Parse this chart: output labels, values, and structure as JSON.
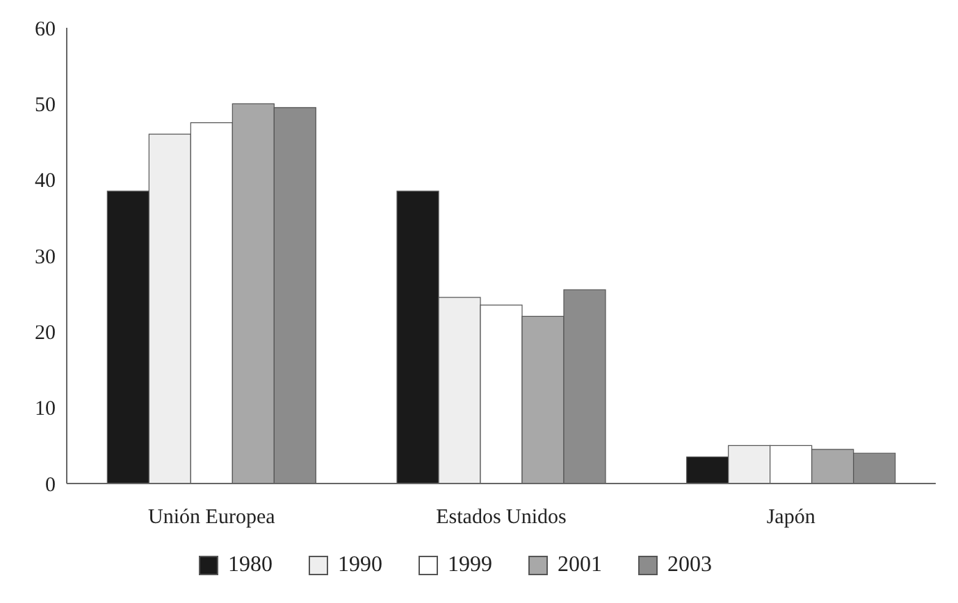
{
  "chart_data": {
    "type": "bar",
    "categories": [
      "Unión Europea",
      "Estados Unidos",
      "Japón"
    ],
    "series": [
      {
        "name": "1980",
        "color": "#1a1a1a",
        "values": [
          38.5,
          38.5,
          3.5
        ]
      },
      {
        "name": "1990",
        "color": "#eeeeee",
        "values": [
          46,
          24.5,
          5
        ]
      },
      {
        "name": "1999",
        "color": "#ffffff",
        "values": [
          47.5,
          23.5,
          5
        ]
      },
      {
        "name": "2001",
        "color": "#a8a8a8",
        "values": [
          50,
          22,
          4.5
        ]
      },
      {
        "name": "2003",
        "color": "#8c8c8c",
        "values": [
          49.5,
          25.5,
          4
        ]
      }
    ],
    "ylim": [
      0,
      60
    ],
    "yticks": [
      0,
      10,
      20,
      30,
      40,
      50,
      60
    ],
    "grid": false,
    "legend": "bottom"
  }
}
